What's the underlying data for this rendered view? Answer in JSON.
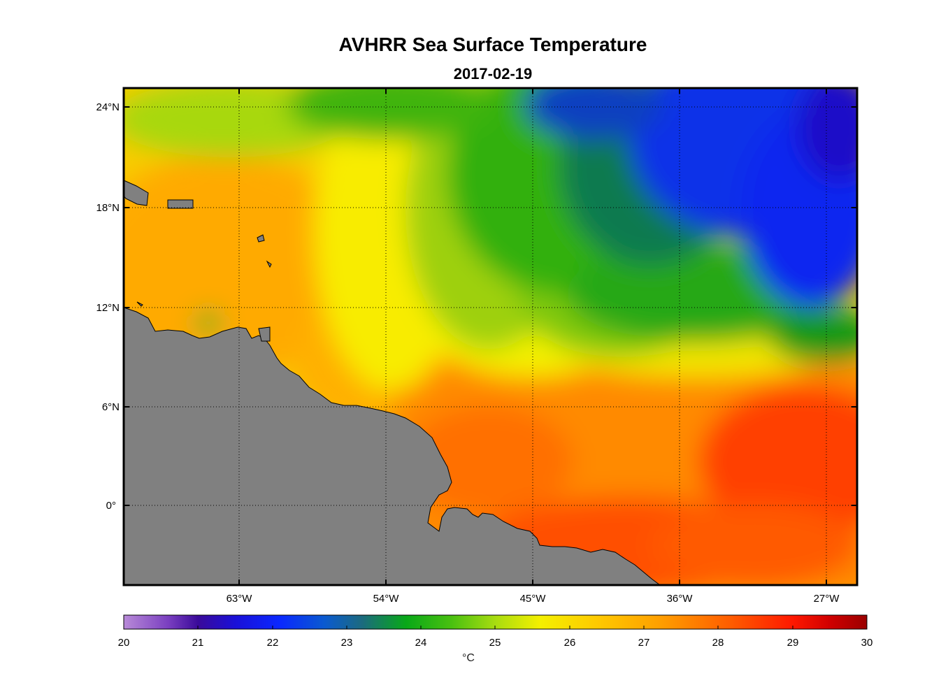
{
  "title": "AVHRR Sea Surface Temperature",
  "subtitle": "2017-02-19",
  "colorbar": {
    "unit": "°C",
    "min": 20,
    "max": 30,
    "ticks": [
      "20",
      "21",
      "22",
      "23",
      "24",
      "25",
      "26",
      "27",
      "28",
      "29",
      "30"
    ]
  },
  "map": {
    "lat_ticks": [
      "24°N",
      "18°N",
      "12°N",
      "6°N",
      "0°"
    ],
    "lon_ticks": [
      "63°W",
      "54°W",
      "45°W",
      "36°W",
      "27°W"
    ],
    "lat_range": [
      -4.8,
      25
    ],
    "lon_range": [
      -70,
      -25.2
    ],
    "land_color": "#808080",
    "grid": "dotted"
  },
  "chart_data": {
    "type": "heatmap",
    "title": "AVHRR Sea Surface Temperature",
    "subtitle": "2017-02-19",
    "xlabel": "",
    "ylabel": "",
    "colorbar_label": "°C",
    "value_range": [
      20,
      30
    ],
    "lon_ticks": [
      -63,
      -54,
      -45,
      -36,
      -27
    ],
    "lat_ticks": [
      24,
      18,
      12,
      6,
      0
    ]
  }
}
